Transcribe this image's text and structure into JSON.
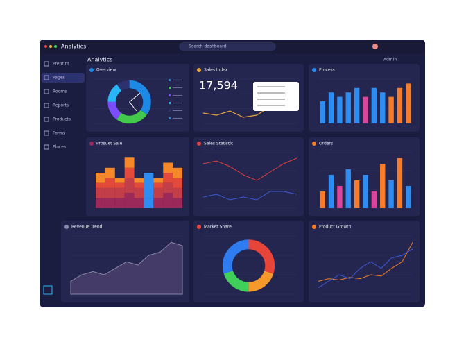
{
  "app": {
    "title": "Analytics",
    "search": "Search dashboard",
    "tab": "Analytics",
    "user": "Admin"
  },
  "sidebar": [
    "Preprint",
    "Pages",
    "Rooms",
    "Reports",
    "Products",
    "Forms",
    "Places"
  ],
  "panels": [
    {
      "title": "Overview",
      "type": "donut",
      "values": [
        35,
        25,
        15,
        15,
        10
      ],
      "colors": [
        "#1e88e5",
        "#43c94b",
        "#7c4dff",
        "#29b6f6",
        "#2d3170"
      ]
    },
    {
      "title": "Sales Index",
      "type": "kpi",
      "value": "17,594",
      "values": [
        5,
        4,
        6,
        3,
        4,
        8,
        7,
        9
      ],
      "color": "#e8a53a",
      "ylim": [
        0,
        12
      ]
    },
    {
      "title": "Process",
      "type": "bar",
      "values": [
        5,
        7,
        6,
        7,
        8,
        6,
        8,
        7,
        6,
        8,
        9
      ],
      "colors": [
        "#2f8cf0",
        "#2f8cf0",
        "#2f8cf0",
        "#2f8cf0",
        "#2f8cf0",
        "#d8459a",
        "#2f8cf0",
        "#2f8cf0",
        "#f57c2a",
        "#f57c2a",
        "#f57c2a"
      ],
      "ylim": [
        0,
        10
      ]
    },
    {
      "title": "Prosuet Sale",
      "type": "stacked",
      "layers": [
        [
          2,
          2,
          2,
          3,
          2,
          2,
          2,
          3,
          2
        ],
        [
          2,
          2,
          2,
          3,
          2,
          0,
          2,
          2,
          2
        ],
        [
          1,
          2,
          1,
          2,
          1,
          5,
          1,
          2,
          2
        ],
        [
          2,
          2,
          1,
          2,
          1,
          0,
          1,
          2,
          2
        ]
      ],
      "colors": [
        "#9b2a5a",
        "#c23f4a",
        "#e24a3b",
        "#f5892a"
      ],
      "ylim": [
        0,
        11
      ]
    },
    {
      "title": "Sales Statistic",
      "type": "line",
      "series": [
        {
          "color": "#e0413c",
          "values": [
            8,
            8.5,
            7.5,
            6,
            5,
            6.5,
            8,
            9
          ]
        },
        {
          "color": "#3d5ad8",
          "values": [
            2,
            2.5,
            1.5,
            2,
            1.5,
            3,
            3,
            2.5
          ]
        }
      ],
      "ylim": [
        0,
        10
      ]
    },
    {
      "title": "Orders",
      "type": "bar",
      "values": [
        3,
        6,
        4,
        7,
        5,
        6,
        3,
        8,
        5,
        9,
        4
      ],
      "colors": [
        "#f57c2a",
        "#2f8cf0",
        "#d8459a",
        "#2f8cf0",
        "#f57c2a",
        "#2f8cf0",
        "#d8459a",
        "#f57c2a",
        "#2f8cf0",
        "#f57c2a",
        "#2f8cf0"
      ],
      "ylim": [
        0,
        10
      ]
    },
    {
      "title": "Revenue Trend",
      "type": "area",
      "values": [
        2,
        3,
        3.5,
        3,
        4,
        5,
        4.5,
        6,
        6.5,
        8,
        7.5
      ],
      "color": "#8a8aa8",
      "ylim": [
        0,
        9
      ]
    },
    {
      "title": "Market Share",
      "type": "donut",
      "values": [
        30,
        20,
        20,
        30
      ],
      "colors": [
        "#e8453a",
        "#f59a2a",
        "#3fcf5a",
        "#2f7cf0"
      ]
    },
    {
      "title": "Product Growth",
      "type": "line",
      "series": [
        {
          "color": "#f57c2a",
          "values": [
            1,
            1.2,
            1.1,
            1.3,
            1.2,
            1.5,
            1.4,
            2,
            2.5,
            4
          ]
        },
        {
          "color": "#3d5ad8",
          "values": [
            0.5,
            1,
            1.5,
            1.2,
            2,
            2.5,
            2,
            2.8,
            3,
            3.5
          ]
        }
      ],
      "ylim": [
        0,
        4.5
      ]
    }
  ]
}
